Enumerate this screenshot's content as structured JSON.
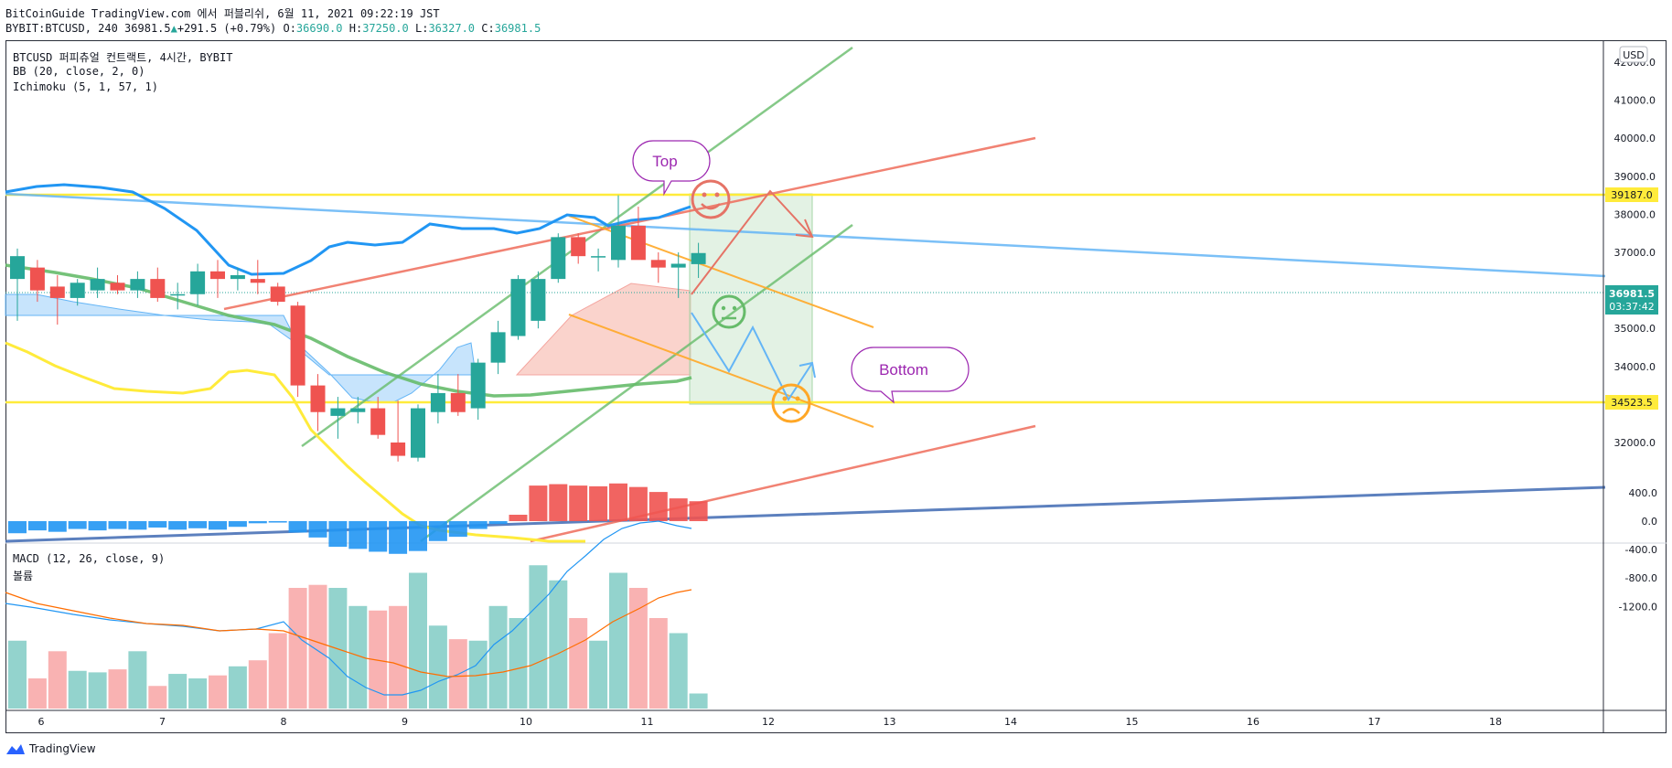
{
  "header": {
    "publish_line": "BitCoinGuide TradingView.com 에서 퍼블리쉬, 6월 11, 2021 09:22:19 JST",
    "symbol_prefix": "BYBIT:BTCUSD, 240 36981.5",
    "change": "+291.5 (+0.79%)",
    "o_label": "O:",
    "o_value": "36690.0",
    "h_label": "H:",
    "h_value": "37250.0",
    "l_label": "L:",
    "l_value": "36327.0",
    "c_label": "C:",
    "c_value": "36981.5"
  },
  "legend": {
    "main_title": "BTCUSD 퍼피츄얼 컨트랙트, 4시간, BYBIT",
    "bb": "BB (20, close, 2, 0)",
    "ichimoku": "Ichimoku (5, 1, 57, 1)",
    "macd": "MACD (12, 26, close, 9)",
    "volume": "볼륨"
  },
  "currency": "USD",
  "annotations": {
    "top_bubble": "Top",
    "bottom_bubble": "Bottom"
  },
  "price_labels": {
    "resistance": "39187.0",
    "support": "34523.5",
    "last_price": "36981.5",
    "countdown": "03:37:42"
  },
  "colors": {
    "up": "#26a69a",
    "down": "#ef5350",
    "hline": "#ffeb3b",
    "bb": "#2196f3",
    "macd": "#2196f3",
    "signal": "#ff6d00"
  },
  "footer": {
    "brand": "TradingView"
  },
  "chart_data": [
    {
      "type": "candlestick",
      "title": "BTCUSD 퍼피츄얼 컨트랙트, 4시간, BYBIT",
      "x_ticks": [
        "6",
        "7",
        "8",
        "9",
        "10",
        "11",
        "12",
        "13",
        "14",
        "15",
        "16",
        "17",
        "18"
      ],
      "y_ticks": [
        "32000.0",
        "33000.0",
        "34000.0",
        "35000.0",
        "36000.0",
        "37000.0",
        "38000.0",
        "39000.0",
        "40000.0",
        "41000.0",
        "42000.0"
      ],
      "ylim": [
        31350,
        42400
      ],
      "candles": [
        {
          "o": 36300,
          "h": 37100,
          "l": 35200,
          "c": 36900
        },
        {
          "o": 36600,
          "h": 36800,
          "l": 35700,
          "c": 36000
        },
        {
          "o": 36100,
          "h": 36400,
          "l": 35100,
          "c": 35800
        },
        {
          "o": 35800,
          "h": 36300,
          "l": 35600,
          "c": 36200
        },
        {
          "o": 36000,
          "h": 36600,
          "l": 35800,
          "c": 36300
        },
        {
          "o": 36200,
          "h": 36400,
          "l": 35900,
          "c": 36000
        },
        {
          "o": 36000,
          "h": 36500,
          "l": 35800,
          "c": 36300
        },
        {
          "o": 36300,
          "h": 36600,
          "l": 35700,
          "c": 35800
        },
        {
          "o": 35900,
          "h": 36200,
          "l": 35500,
          "c": 35900
        },
        {
          "o": 35900,
          "h": 36700,
          "l": 35600,
          "c": 36500
        },
        {
          "o": 36500,
          "h": 36800,
          "l": 35800,
          "c": 36300
        },
        {
          "o": 36300,
          "h": 36600,
          "l": 36000,
          "c": 36400
        },
        {
          "o": 36300,
          "h": 36800,
          "l": 35900,
          "c": 36200
        },
        {
          "o": 36100,
          "h": 36200,
          "l": 35600,
          "c": 35700
        },
        {
          "o": 35600,
          "h": 35700,
          "l": 33200,
          "c": 33500
        },
        {
          "o": 33500,
          "h": 33800,
          "l": 32300,
          "c": 32800
        },
        {
          "o": 32700,
          "h": 33200,
          "l": 32100,
          "c": 32900
        },
        {
          "o": 32800,
          "h": 33200,
          "l": 32500,
          "c": 32900
        },
        {
          "o": 32900,
          "h": 33200,
          "l": 32100,
          "c": 32200
        },
        {
          "o": 32000,
          "h": 33100,
          "l": 31500,
          "c": 31650
        },
        {
          "o": 31600,
          "h": 33000,
          "l": 31500,
          "c": 32900
        },
        {
          "o": 32800,
          "h": 33800,
          "l": 32500,
          "c": 33300
        },
        {
          "o": 33300,
          "h": 33800,
          "l": 32700,
          "c": 32800
        },
        {
          "o": 32900,
          "h": 34200,
          "l": 32600,
          "c": 34100
        },
        {
          "o": 34100,
          "h": 35200,
          "l": 33800,
          "c": 34900
        },
        {
          "o": 34800,
          "h": 36400,
          "l": 34700,
          "c": 36300
        },
        {
          "o": 35200,
          "h": 36500,
          "l": 35000,
          "c": 36300
        },
        {
          "o": 36300,
          "h": 37500,
          "l": 36200,
          "c": 37400
        },
        {
          "o": 37400,
          "h": 37500,
          "l": 36700,
          "c": 36900
        },
        {
          "o": 36900,
          "h": 37100,
          "l": 36500,
          "c": 36900
        },
        {
          "o": 36800,
          "h": 38500,
          "l": 36600,
          "c": 37700
        },
        {
          "o": 37700,
          "h": 38200,
          "l": 36900,
          "c": 36800
        },
        {
          "o": 36800,
          "h": 37000,
          "l": 36200,
          "c": 36600
        },
        {
          "o": 36600,
          "h": 37000,
          "l": 35800,
          "c": 36700
        },
        {
          "o": 36690,
          "h": 37250,
          "l": 36327,
          "c": 36981.5
        }
      ],
      "horizontal_levels": [
        39187.0,
        34523.5
      ],
      "last_price": 36981.5
    },
    {
      "type": "bar",
      "title": "MACD (12, 26, close, 9)",
      "y_ticks": [
        "400.0",
        "0.0",
        "-400.0",
        "-800.0",
        "-1200.0"
      ],
      "ylim": [
        -1300,
        550
      ],
      "histogram": [
        -170,
        -130,
        -150,
        -110,
        -130,
        -110,
        -120,
        -90,
        -120,
        -100,
        -120,
        -80,
        -30,
        -20,
        -160,
        -230,
        -360,
        -390,
        -430,
        -460,
        -420,
        -280,
        -220,
        -110,
        -40,
        90,
        500,
        520,
        500,
        490,
        530,
        480,
        410,
        320,
        280
      ],
      "volume": [
        0.45,
        0.2,
        0.38,
        0.25,
        0.24,
        0.26,
        0.38,
        0.15,
        0.23,
        0.2,
        0.22,
        0.28,
        0.32,
        0.5,
        0.8,
        0.82,
        0.8,
        0.68,
        0.65,
        0.68,
        0.9,
        0.55,
        0.46,
        0.45,
        0.68,
        0.6,
        0.95,
        0.85,
        0.6,
        0.45,
        0.9,
        0.8,
        0.6,
        0.5,
        0.1
      ]
    }
  ]
}
